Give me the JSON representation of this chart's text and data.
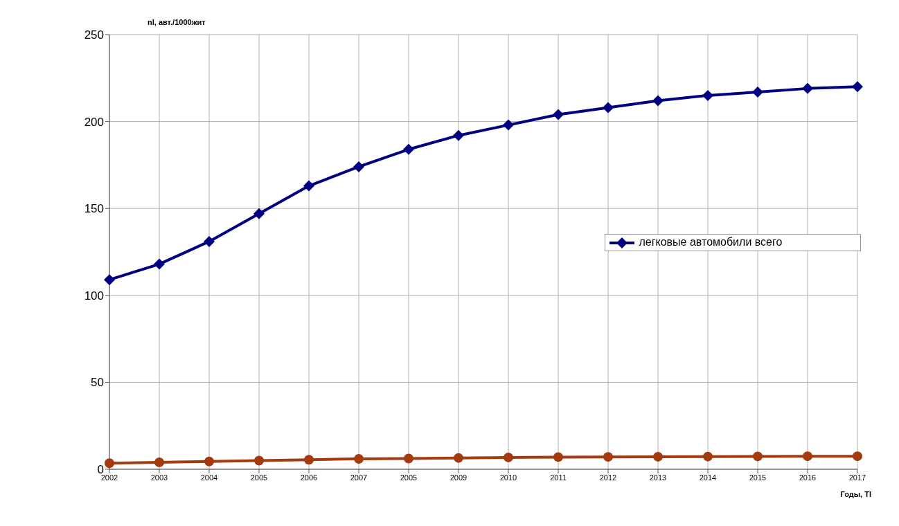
{
  "chart_data": {
    "type": "line",
    "xlabel": "Годы, Tl",
    "ylabel": "nl, авт./1000жит",
    "categories": [
      "2002",
      "2003",
      "2004",
      "2005",
      "2006",
      "2007",
      "2005",
      "2009",
      "2010",
      "2011",
      "2012",
      "2013",
      "2014",
      "2015",
      "2016",
      "2017"
    ],
    "series": [
      {
        "name": "легковые автомобили всего",
        "color": "#000080",
        "marker": "diamond",
        "values": [
          109,
          118,
          131,
          147,
          163,
          174,
          184,
          192,
          198,
          204,
          208,
          212,
          215,
          217,
          219,
          220
        ]
      },
      {
        "color": "#a33b0f",
        "marker": "circle",
        "values": [
          3.5,
          4,
          4.5,
          5,
          5.5,
          6,
          6.2,
          6.5,
          6.8,
          7,
          7.1,
          7.2,
          7.3,
          7.4,
          7.5,
          7.5
        ]
      }
    ],
    "ylim": [
      0,
      250
    ],
    "yticks": [
      0,
      50,
      100,
      150,
      200,
      250
    ],
    "grid": true,
    "legend": "right"
  }
}
